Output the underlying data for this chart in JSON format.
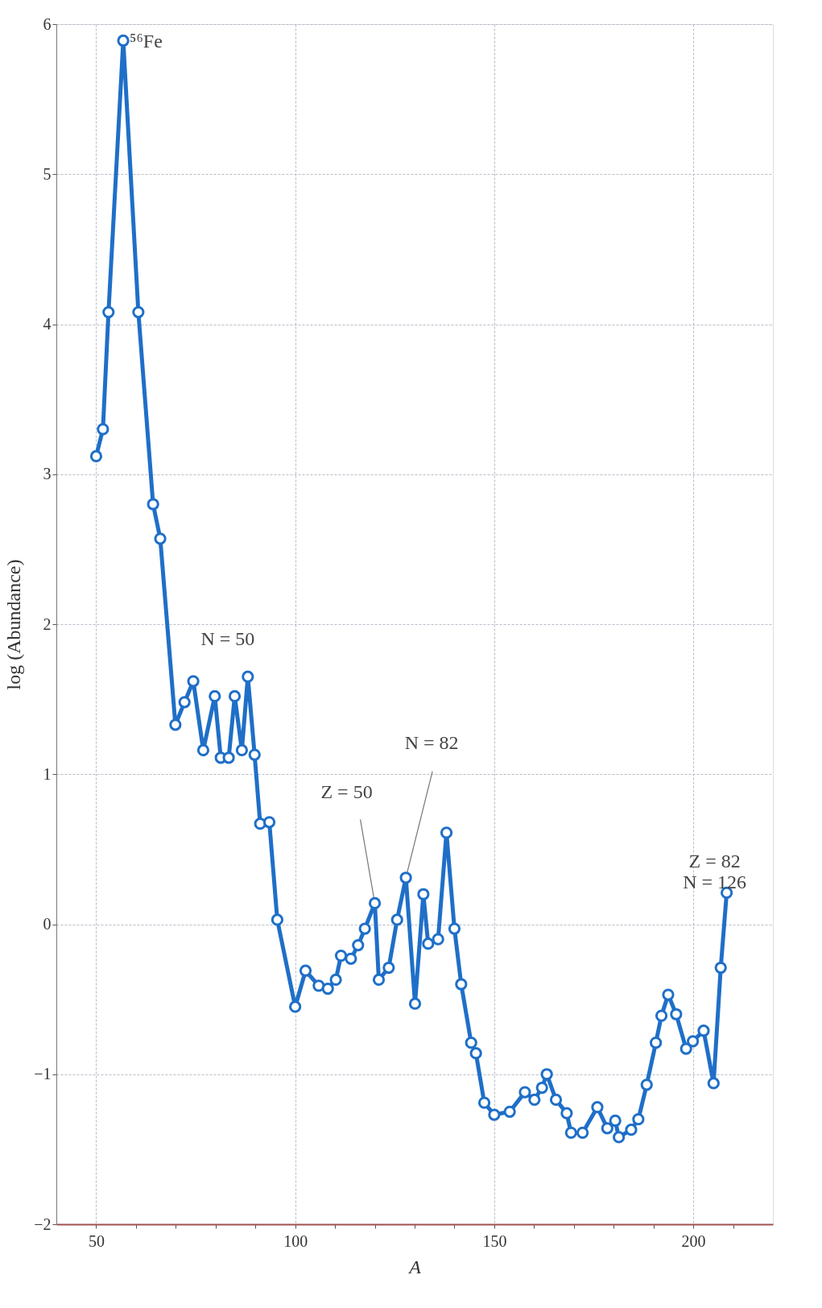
{
  "chart_data": {
    "type": "line",
    "xlabel": "A",
    "ylabel": "log (Abundance)",
    "color": "#1f6fc8",
    "marker": "circle",
    "line_style": "solid",
    "grid": true,
    "xlim": [
      40,
      220
    ],
    "xticks": [
      50,
      {
        "value": 60,
        "label": null
      },
      {
        "value": 70,
        "label": null
      },
      {
        "value": 80,
        "label": null
      },
      {
        "value": 90,
        "label": null
      },
      100,
      {
        "value": 110,
        "label": null
      },
      {
        "value": 120,
        "label": null
      },
      {
        "value": 130,
        "label": null
      },
      {
        "value": 140,
        "label": null
      },
      150,
      {
        "value": 160,
        "label": null
      },
      {
        "value": 170,
        "label": null
      },
      {
        "value": 180,
        "label": null
      },
      {
        "value": 190,
        "label": null
      },
      200,
      {
        "value": 210,
        "label": null
      }
    ],
    "ylim": [
      -2,
      6
    ],
    "yticks": [
      {
        "value": -2,
        "label": "−2"
      },
      {
        "value": -1,
        "label": "−1"
      },
      0,
      1,
      2,
      3,
      4,
      5,
      6
    ],
    "x": [
      50,
      51.7,
      53.1,
      56.8,
      60.6,
      64.3,
      66.1,
      69.9,
      72.2,
      74.4,
      76.9,
      79.8,
      81.3,
      83.3,
      84.8,
      86.6,
      88.1,
      89.8,
      91.2,
      93.5,
      95.5,
      100,
      102.6,
      105.9,
      108.2,
      110.2,
      111.5,
      114,
      115.8,
      117.5,
      120,
      121,
      123.5,
      125.6,
      127.8,
      130.1,
      132.2,
      133.4,
      135.9,
      138,
      140,
      141.7,
      144.2,
      145.4,
      147.5,
      150,
      153.9,
      157.7,
      160.1,
      162,
      163.2,
      165.5,
      168.2,
      169.3,
      172.2,
      175.9,
      178.4,
      180.4,
      181.3,
      184.4,
      186.2,
      188.3,
      190.6,
      192,
      193.7,
      195.7,
      198.2,
      199.9,
      202.6,
      205.1,
      206.9,
      208.4
    ],
    "values": [
      3.12,
      3.3,
      4.08,
      5.89,
      4.08,
      2.8,
      2.57,
      1.33,
      1.48,
      1.62,
      1.16,
      1.52,
      1.11,
      1.11,
      1.52,
      1.16,
      1.65,
      1.13,
      0.67,
      0.68,
      0.03,
      -0.55,
      -0.31,
      -0.41,
      -0.43,
      -0.37,
      -0.21,
      -0.23,
      -0.14,
      -0.03,
      0.14,
      -0.37,
      -0.29,
      0.03,
      0.31,
      -0.53,
      0.2,
      -0.13,
      -0.1,
      0.61,
      -0.03,
      -0.4,
      -0.79,
      -0.86,
      -1.19,
      -1.27,
      -1.25,
      -1.12,
      -1.17,
      -1.09,
      -1.0,
      -1.17,
      -1.26,
      -1.39,
      -1.39,
      -1.22,
      -1.36,
      -1.31,
      -1.42,
      -1.37,
      -1.3,
      -1.07,
      -0.79,
      -0.61,
      -0.47,
      -0.6,
      -0.83,
      -0.78,
      -0.71,
      -1.06,
      -0.29,
      0.21
    ],
    "annotations": [
      {
        "text": "⁵⁶Fe",
        "x": 56.8,
        "y": 5.89
      },
      {
        "text": "N = 50",
        "x": 88.1,
        "y": 1.65
      },
      {
        "text": "Z = 50",
        "x": 120,
        "y": 0.14
      },
      {
        "text": "N = 82",
        "x": 127.8,
        "y": 0.31
      },
      {
        "text": "Z = 82\nN = 126",
        "x": 208.4,
        "y": 0.21
      }
    ]
  }
}
